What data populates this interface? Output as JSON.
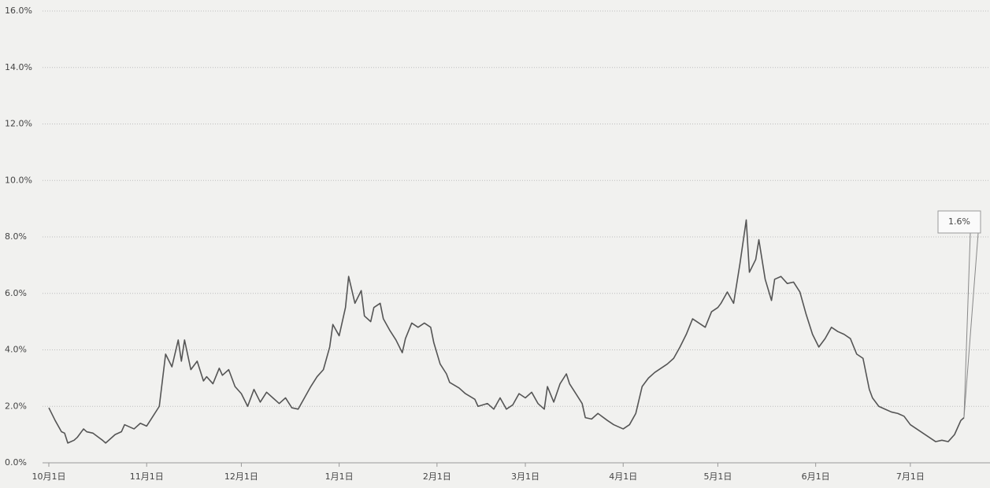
{
  "chart_data": {
    "type": "line",
    "x": [
      0,
      2,
      4,
      5,
      6,
      8,
      9,
      11,
      12,
      14,
      17,
      18,
      21,
      23,
      24,
      27,
      29,
      31,
      33,
      35,
      37,
      39,
      41,
      42,
      43,
      45,
      47,
      49,
      50,
      52,
      54,
      55,
      57,
      59,
      61,
      63,
      65,
      67,
      69,
      71,
      73,
      75,
      77,
      79,
      81,
      83,
      85,
      87,
      89,
      90,
      92,
      94,
      95,
      97,
      99,
      100,
      102,
      103,
      105,
      106,
      108,
      110,
      112,
      113,
      115,
      117,
      119,
      121,
      122,
      124,
      126,
      127,
      130,
      132,
      135,
      136,
      139,
      141,
      143,
      145,
      147,
      149,
      151,
      153,
      155,
      157,
      158,
      160,
      162,
      164,
      165,
      167,
      169,
      170,
      172,
      174,
      177,
      179,
      182,
      184,
      186,
      188,
      190,
      192,
      194,
      196,
      198,
      200,
      202,
      204,
      206,
      208,
      210,
      212,
      213,
      215,
      217,
      219,
      221,
      222,
      224,
      225,
      227,
      229,
      230,
      232,
      234,
      236,
      238,
      240,
      242,
      244,
      246,
      248,
      250,
      252,
      254,
      256,
      258,
      260,
      261,
      263,
      265,
      267,
      269,
      271,
      273,
      275,
      277,
      279,
      281,
      283,
      285,
      287,
      289,
      290
    ],
    "series": [
      {
        "color": "#555555",
        "values": [
          1.95,
          1.5,
          1.1,
          1.05,
          0.7,
          0.8,
          0.9,
          1.2,
          1.1,
          1.05,
          0.8,
          0.7,
          1.0,
          1.1,
          1.35,
          1.2,
          1.4,
          1.3,
          1.65,
          2.0,
          3.85,
          3.4,
          4.35,
          3.6,
          4.35,
          3.3,
          3.6,
          2.9,
          3.05,
          2.8,
          3.35,
          3.1,
          3.3,
          2.7,
          2.45,
          2.0,
          2.6,
          2.15,
          2.5,
          2.3,
          2.1,
          2.3,
          1.95,
          1.9,
          2.3,
          2.7,
          3.05,
          3.3,
          4.1,
          4.9,
          4.5,
          5.5,
          6.6,
          5.65,
          6.1,
          5.2,
          5.0,
          5.5,
          5.65,
          5.1,
          4.7,
          4.35,
          3.9,
          4.4,
          4.95,
          4.8,
          4.95,
          4.8,
          4.25,
          3.5,
          3.15,
          2.85,
          2.65,
          2.45,
          2.25,
          2.0,
          2.1,
          1.9,
          2.3,
          1.9,
          2.05,
          2.45,
          2.3,
          2.5,
          2.1,
          1.9,
          2.7,
          2.15,
          2.8,
          3.15,
          2.8,
          2.45,
          2.1,
          1.6,
          1.55,
          1.75,
          1.5,
          1.35,
          1.2,
          1.35,
          1.75,
          2.7,
          3.0,
          3.2,
          3.35,
          3.5,
          3.7,
          4.1,
          4.55,
          5.1,
          4.95,
          4.8,
          5.35,
          5.5,
          5.65,
          6.05,
          5.65,
          7.05,
          8.6,
          6.75,
          7.2,
          7.9,
          6.5,
          5.75,
          6.5,
          6.6,
          6.35,
          6.4,
          6.05,
          5.25,
          4.55,
          4.1,
          4.4,
          4.8,
          4.65,
          4.55,
          4.4,
          3.85,
          3.7,
          2.6,
          2.3,
          2.0,
          1.9,
          1.8,
          1.75,
          1.65,
          1.35,
          1.2,
          1.05,
          0.9,
          0.75,
          0.8,
          0.75,
          1.0,
          1.5,
          1.6
        ]
      }
    ],
    "annotation": "1.6%",
    "xlim": [
      -2,
      294
    ],
    "xticks": [
      {
        "value": 0,
        "label": "10月1日"
      },
      {
        "value": 31,
        "label": "11月1日"
      },
      {
        "value": 61,
        "label": "12月1日"
      },
      {
        "value": 92,
        "label": "1月1日"
      },
      {
        "value": 123,
        "label": "2月1日"
      },
      {
        "value": 151,
        "label": "3月1日"
      },
      {
        "value": 182,
        "label": "4月1日"
      },
      {
        "value": 212,
        "label": "5月1日"
      },
      {
        "value": 243,
        "label": "6月1日"
      },
      {
        "value": 273,
        "label": "7月1日"
      }
    ],
    "ylim": [
      0,
      16
    ],
    "yticks": [
      {
        "value": 0,
        "label": "0.0%"
      },
      {
        "value": 2,
        "label": "2.0%"
      },
      {
        "value": 4,
        "label": "4.0%"
      },
      {
        "value": 6,
        "label": "6.0%"
      },
      {
        "value": 8,
        "label": "8.0%"
      },
      {
        "value": 10,
        "label": "10.0%"
      },
      {
        "value": 12,
        "label": "12.0%"
      },
      {
        "value": 14,
        "label": "14.0%"
      },
      {
        "value": 16,
        "label": "16.0%"
      }
    ],
    "grid": true
  }
}
